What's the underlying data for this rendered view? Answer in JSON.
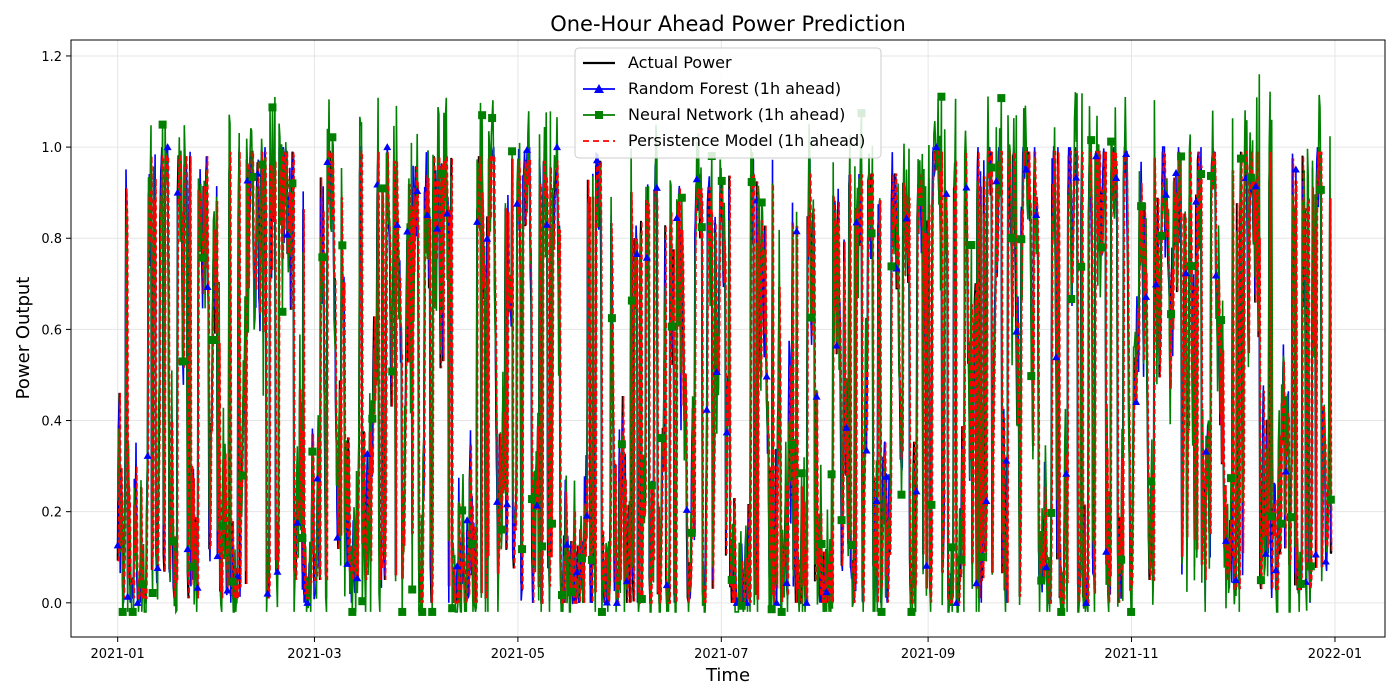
{
  "chart_data": {
    "type": "line",
    "title": "One-Hour Ahead Power Prediction",
    "xlabel": "Time",
    "ylabel": "Power Output",
    "xlim": [
      "2020-12-18",
      "2022-01-16"
    ],
    "ylim": [
      -0.075,
      1.235
    ],
    "x_ticks": [
      "2021-01",
      "2021-03",
      "2021-05",
      "2021-07",
      "2021-09",
      "2021-11",
      "2022-01"
    ],
    "y_ticks": [
      "0.0",
      "0.2",
      "0.4",
      "0.6",
      "0.8",
      "1.0",
      "1.2"
    ],
    "x_range": [
      "2021-01-01",
      "2021-12-31"
    ],
    "grid": true,
    "legend_position": "top-center",
    "series": [
      {
        "name": "Actual Power",
        "color": "#000000",
        "style": "solid",
        "marker": "none"
      },
      {
        "name": "Random Forest (1h ahead)",
        "color": "#0000ff",
        "style": "solid",
        "marker": "triangle"
      },
      {
        "name": "Neural Network (1h ahead)",
        "color": "#008000",
        "style": "solid",
        "marker": "square"
      },
      {
        "name": "Persistence Model (1h ahead)",
        "color": "#ff0000",
        "style": "dashed",
        "marker": "none"
      }
    ],
    "value_range_by_month": [
      {
        "month": "2021-01",
        "low": 0.01,
        "high": 0.98
      },
      {
        "month": "2021-02",
        "low": 0.01,
        "high": 1.17
      },
      {
        "month": "2021-03",
        "low": 0.05,
        "high": 0.99
      },
      {
        "month": "2021-04",
        "low": 0.0,
        "high": 0.98
      },
      {
        "month": "2021-05",
        "low": 0.0,
        "high": 0.97
      },
      {
        "month": "2021-06",
        "low": -0.01,
        "high": 0.91
      },
      {
        "month": "2021-07",
        "low": 0.0,
        "high": 0.94
      },
      {
        "month": "2021-08",
        "low": -0.02,
        "high": 0.94
      },
      {
        "month": "2021-09",
        "low": 0.0,
        "high": 1.07
      },
      {
        "month": "2021-10",
        "low": 0.0,
        "high": 1.09
      },
      {
        "month": "2021-11",
        "low": 0.05,
        "high": 0.99
      },
      {
        "month": "2021-12",
        "low": 0.03,
        "high": 1.16
      }
    ]
  }
}
